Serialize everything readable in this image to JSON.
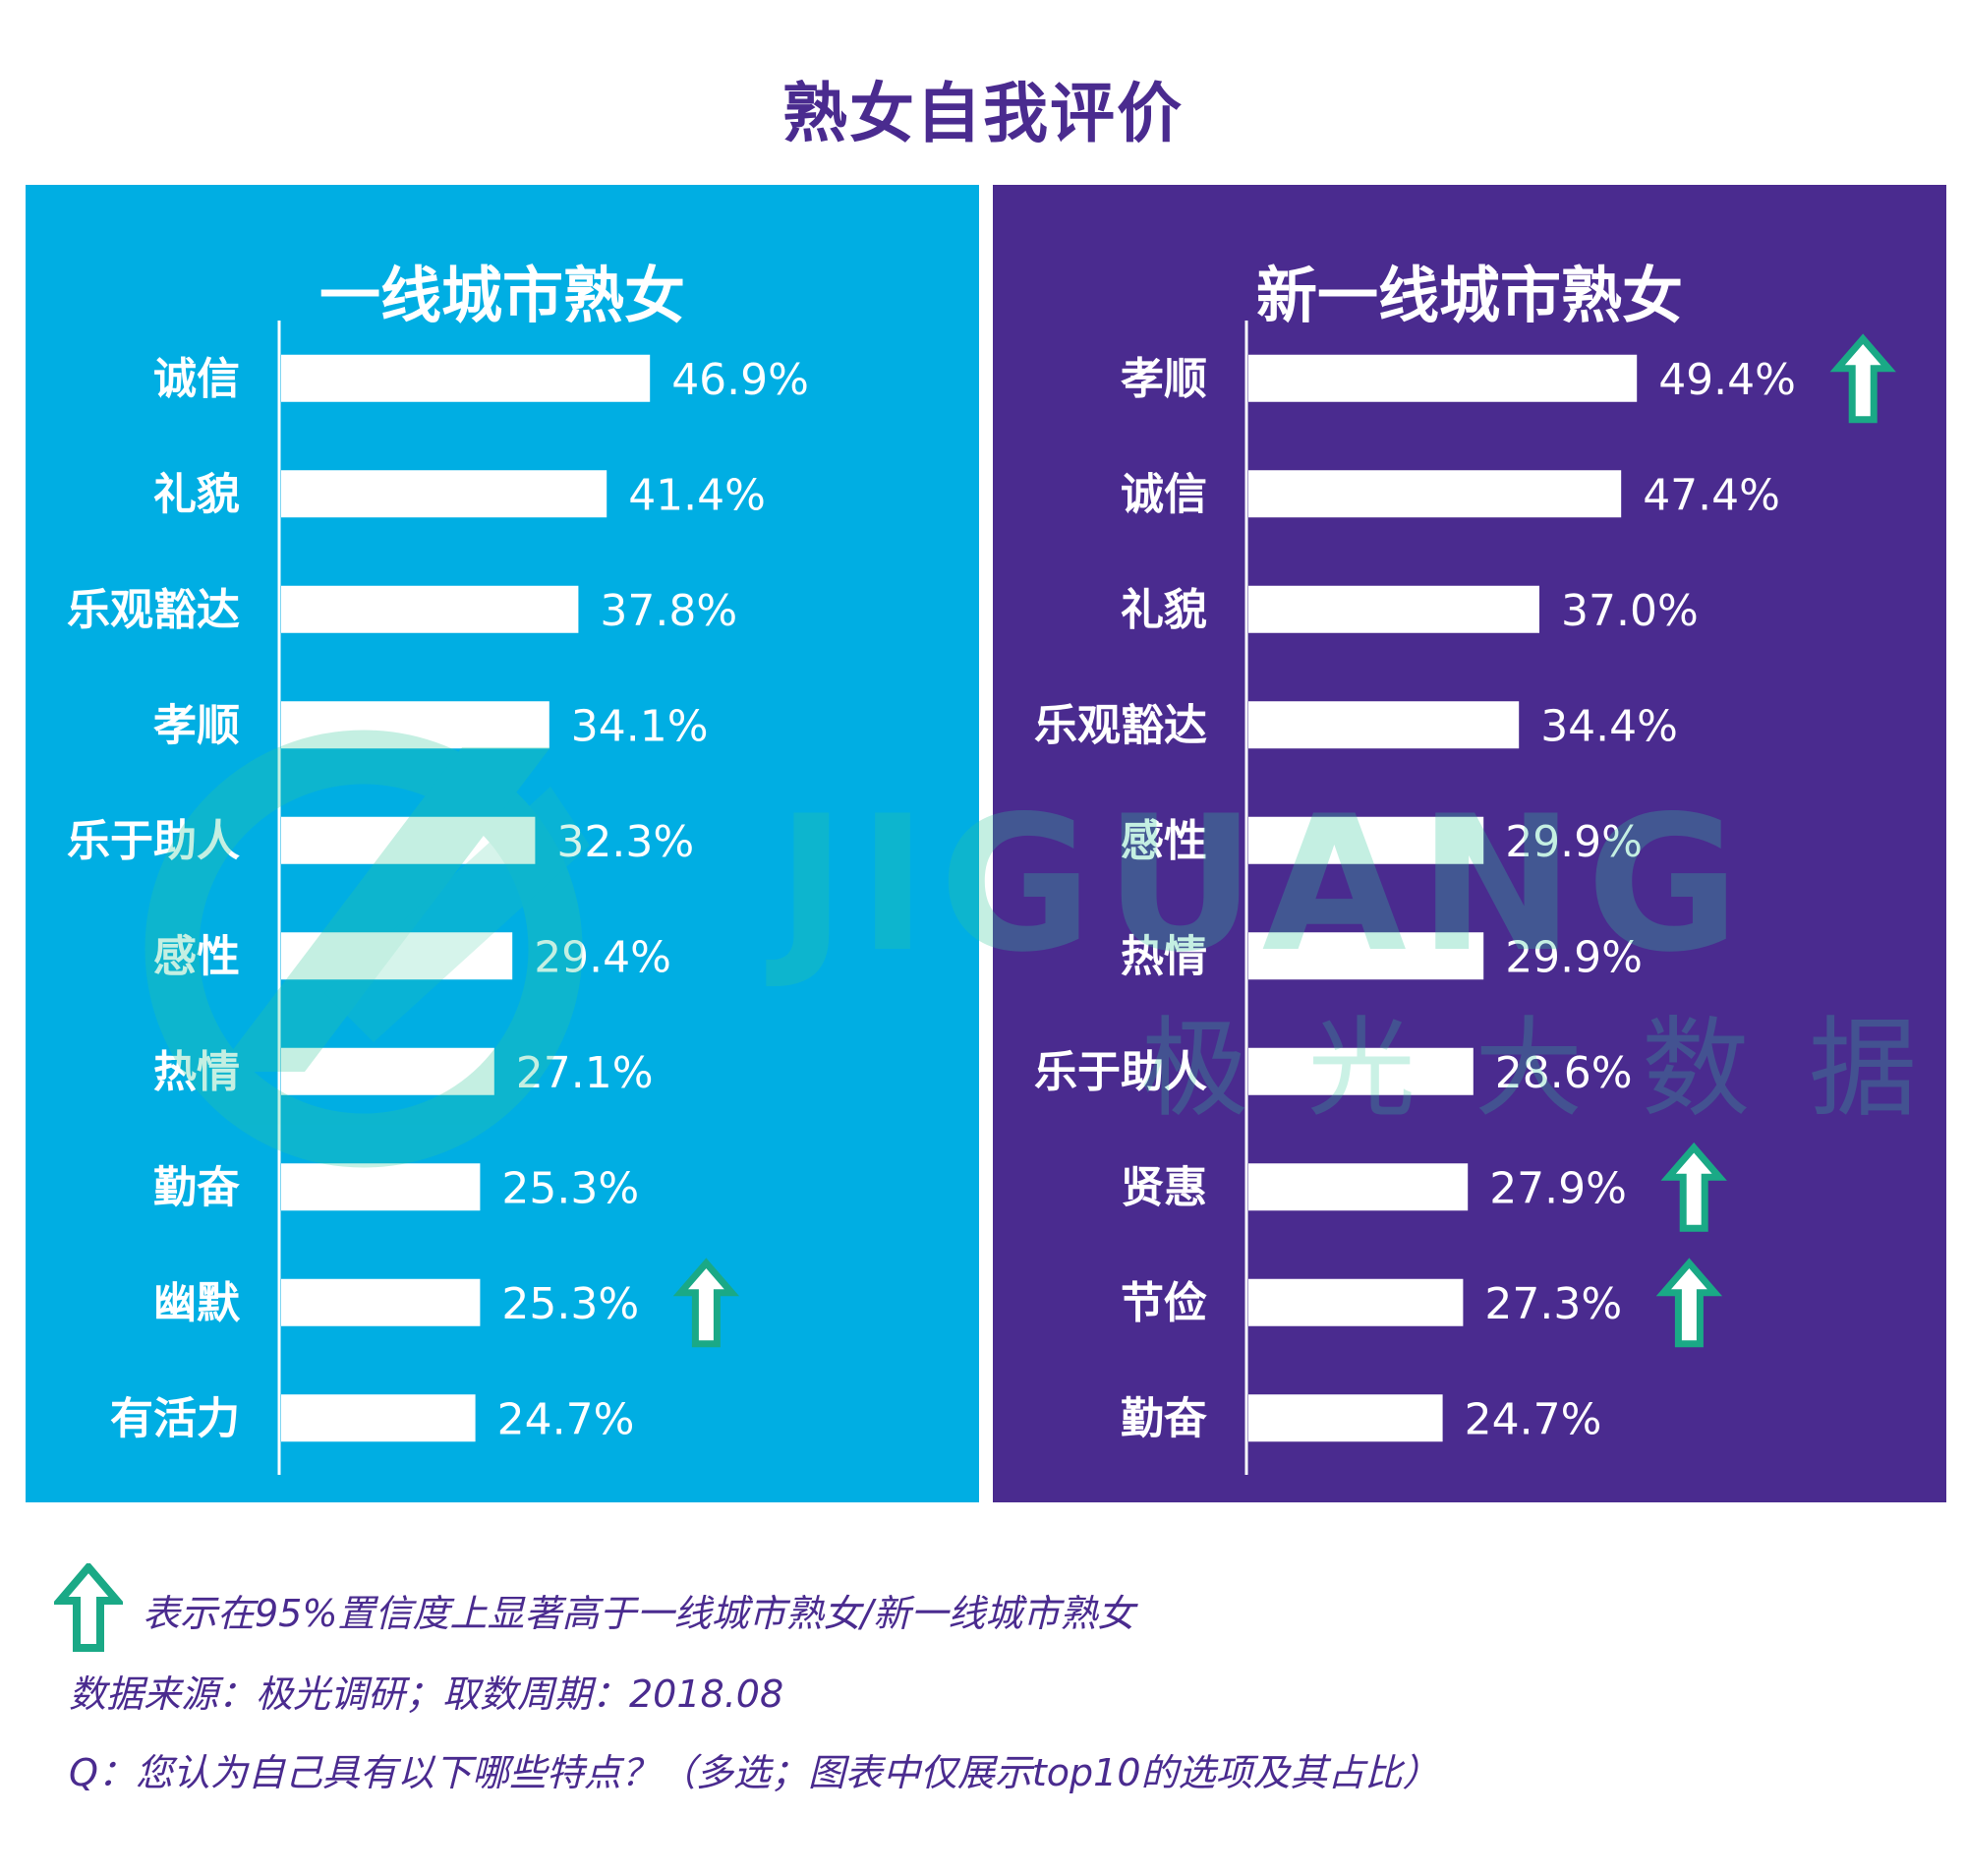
{
  "title": "熟女自我评价",
  "colors": {
    "left_bg": "#00aee3",
    "right_bg": "#4a2b8f",
    "bar": "#ffffff",
    "arrow": "#1aa986",
    "title": "#4a2b8f"
  },
  "watermark": {
    "brand": "JIGUANG",
    "sub": "极光大数据"
  },
  "chart_data": [
    {
      "type": "bar",
      "orientation": "horizontal",
      "title": "一线城市熟女",
      "categories": [
        "诚信",
        "礼貌",
        "乐观豁达",
        "孝顺",
        "乐于助人",
        "感性",
        "热情",
        "勤奋",
        "幽默",
        "有活力"
      ],
      "values": [
        46.9,
        41.4,
        37.8,
        34.1,
        32.3,
        29.4,
        27.1,
        25.3,
        25.3,
        24.7
      ],
      "labels": [
        "46.9%",
        "41.4%",
        "37.8%",
        "34.1%",
        "32.3%",
        "29.4%",
        "27.1%",
        "25.3%",
        "25.3%",
        "24.7%"
      ],
      "significant": [
        false,
        false,
        false,
        false,
        false,
        false,
        false,
        false,
        true,
        false
      ],
      "unit": "%",
      "xlim": [
        0,
        62
      ]
    },
    {
      "type": "bar",
      "orientation": "horizontal",
      "title": "新一线城市熟女",
      "categories": [
        "孝顺",
        "诚信",
        "礼貌",
        "乐观豁达",
        "感性",
        "热情",
        "乐于助人",
        "贤惠",
        "节俭",
        "勤奋"
      ],
      "values": [
        49.4,
        47.4,
        37.0,
        34.4,
        29.9,
        29.9,
        28.6,
        27.9,
        27.3,
        24.7
      ],
      "labels": [
        "49.4%",
        "47.4%",
        "37.0%",
        "34.4%",
        "29.9%",
        "29.9%",
        "28.6%",
        "27.9%",
        "27.3%",
        "24.7%"
      ],
      "significant": [
        true,
        false,
        false,
        false,
        false,
        false,
        false,
        true,
        true,
        false
      ],
      "unit": "%",
      "xlim": [
        0,
        62
      ]
    }
  ],
  "footnotes": {
    "legend": "表示在95%置信度上显著高于一线城市熟女/新一线城市熟女",
    "source": "数据来源：极光调研；取数周期：2018.08",
    "question": "Q：您认为自己具有以下哪些特点？（多选；图表中仅展示top10的选项及其占比）"
  }
}
